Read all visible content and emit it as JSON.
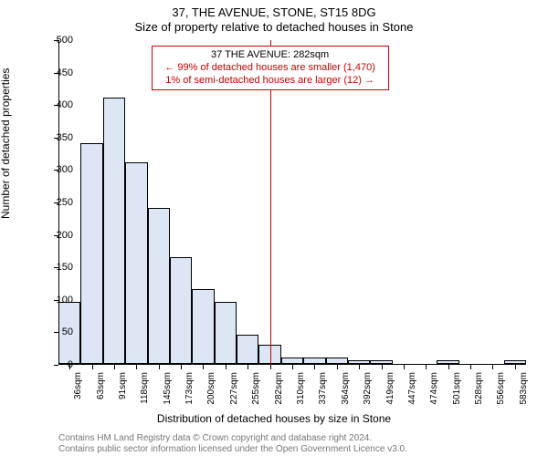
{
  "title_line1": "37, THE AVENUE, STONE, ST15 8DG",
  "title_line2": "Size of property relative to detached houses in Stone",
  "y_axis_label": "Number of detached properties",
  "x_axis_label": "Distribution of detached houses by size in Stone",
  "footer_line1": "Contains HM Land Registry data © Crown copyright and database right 2024.",
  "footer_line2": "Contains public sector information licensed under the Open Government Licence v3.0.",
  "annotation": {
    "line1": "37 THE AVENUE: 282sqm",
    "line2": "← 99% of detached houses are smaller (1,470)",
    "line3": "1% of semi-detached houses are larger (12) →",
    "border_color": "#cc0000",
    "text_color_highlight": "#cc0000",
    "text_color": "#000000"
  },
  "chart": {
    "type": "histogram",
    "y_lim": [
      0,
      500
    ],
    "y_ticks": [
      0,
      50,
      100,
      150,
      200,
      250,
      300,
      350,
      400,
      450,
      500
    ],
    "x_categories": [
      "36sqm",
      "63sqm",
      "91sqm",
      "118sqm",
      "145sqm",
      "173sqm",
      "200sqm",
      "227sqm",
      "255sqm",
      "282sqm",
      "310sqm",
      "337sqm",
      "364sqm",
      "392sqm",
      "419sqm",
      "447sqm",
      "474sqm",
      "501sqm",
      "528sqm",
      "556sqm",
      "583sqm"
    ],
    "reference_x_index": 9,
    "reference_line_color": "#cc0000",
    "bar_color": "#dce6f4",
    "bar_border_color": "#000000",
    "bar_width_ratio": 1.0,
    "values": [
      95,
      340,
      410,
      310,
      240,
      165,
      115,
      95,
      45,
      30,
      10,
      10,
      10,
      5,
      5,
      0,
      0,
      5,
      0,
      0,
      5
    ],
    "background_color": "#ffffff",
    "axis_color": "#000000",
    "tick_fontsize": 11,
    "label_fontsize": 12,
    "title_fontsize": 13
  }
}
